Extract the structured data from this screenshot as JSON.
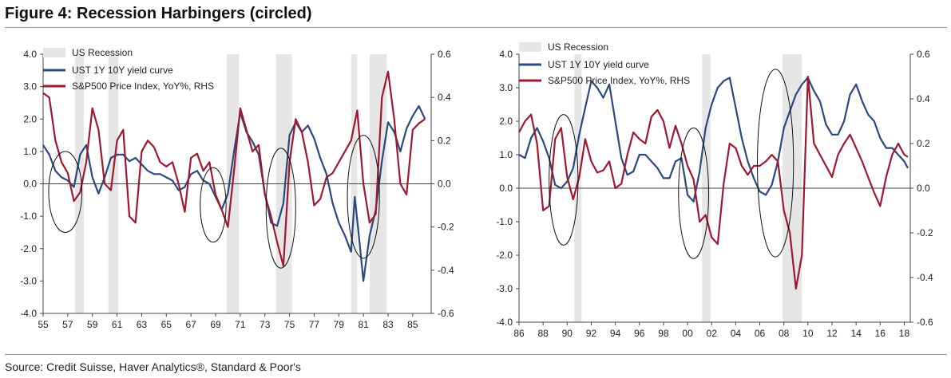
{
  "figure_title": "Figure 4:  Recession Harbingers (circled)",
  "source": "Source:  Credit Suisse, Haver Analytics®, Standard & Poor's",
  "colors": {
    "recession": "#e6e6e6",
    "curve": "#2a4a7f",
    "spx": "#a0182f",
    "spx_faded": "#d7949f",
    "axis": "#444"
  },
  "chart_data": [
    {
      "type": "line",
      "legend": [
        "US Recession",
        "UST 1Y 10Y yield curve",
        "S&P500 Price Index, YoY%, RHS"
      ],
      "xlim": [
        1955,
        1986.5
      ],
      "x_ticks": [
        1955,
        1957,
        1959,
        1961,
        1963,
        1965,
        1967,
        1969,
        1971,
        1973,
        1975,
        1977,
        1979,
        1981,
        1983,
        1985
      ],
      "x_tick_labels": [
        "55",
        "57",
        "59",
        "61",
        "63",
        "65",
        "67",
        "69",
        "71",
        "73",
        "75",
        "77",
        "79",
        "81",
        "83",
        "85"
      ],
      "ylim_left": [
        -4,
        4
      ],
      "y_left_ticks": [
        "4.0",
        "3.0",
        "2.0",
        "1.0",
        "0.0",
        "-1.0",
        "-2.0",
        "-3.0",
        "-4.0"
      ],
      "y_left_values": [
        4,
        3,
        2,
        1,
        0,
        -1,
        -2,
        -3,
        -4
      ],
      "ylim_right": [
        -0.6,
        0.6
      ],
      "y_right_ticks": [
        "0.6",
        "0.4",
        "0.2",
        "0.0",
        "-0.2",
        "-0.4",
        "-0.6"
      ],
      "y_right_values": [
        0.6,
        0.4,
        0.2,
        0,
        -0.2,
        -0.4,
        -0.6
      ],
      "recessions": [
        [
          1957.6,
          1958.3
        ],
        [
          1960.3,
          1961.1
        ],
        [
          1969.9,
          1970.9
        ],
        [
          1973.9,
          1975.2
        ],
        [
          1980.0,
          1980.5
        ],
        [
          1981.5,
          1982.9
        ]
      ],
      "circles": [
        [
          1956.8,
          -0.25,
          1.35,
          1.25
        ],
        [
          1968.8,
          -0.65,
          1.05,
          1.15
        ],
        [
          1974.3,
          -0.75,
          1.2,
          1.85
        ],
        [
          1981.0,
          -0.4,
          1.3,
          1.9
        ]
      ],
      "curve": {
        "name": "UST 1Y 10Y yield curve",
        "x": [
          1955,
          1955.5,
          1956,
          1956.5,
          1957,
          1957.5,
          1958,
          1958.5,
          1959,
          1959.5,
          1960,
          1960.5,
          1961,
          1961.5,
          1962,
          1962.5,
          1963,
          1963.5,
          1964,
          1964.5,
          1965,
          1965.5,
          1966,
          1966.5,
          1967,
          1967.5,
          1968,
          1968.5,
          1969,
          1969.5,
          1970,
          1970.5,
          1971,
          1971.5,
          1972,
          1972.5,
          1973,
          1973.5,
          1974,
          1974.5,
          1975,
          1975.5,
          1976,
          1976.5,
          1977,
          1977.5,
          1978,
          1978.5,
          1979,
          1979.5,
          1980,
          1980.3,
          1980.6,
          1981,
          1981.5,
          1982,
          1982.5,
          1983,
          1983.5,
          1984,
          1984.5,
          1985,
          1985.5,
          1986
        ],
        "values": [
          1.2,
          0.9,
          0.4,
          0.2,
          0.1,
          -0.1,
          0.9,
          1.2,
          0.2,
          -0.3,
          0.2,
          0.8,
          0.9,
          0.9,
          0.7,
          0.8,
          0.6,
          0.4,
          0.3,
          0.3,
          0.2,
          0.1,
          -0.2,
          -0.1,
          0.3,
          0.4,
          0.1,
          0.0,
          -0.4,
          -0.8,
          -0.3,
          1.0,
          2.2,
          1.6,
          1.3,
          0.9,
          -0.3,
          -1.2,
          -1.3,
          -0.6,
          1.5,
          1.9,
          1.6,
          1.8,
          1.4,
          0.8,
          0.3,
          -0.6,
          -1.2,
          -1.6,
          -2.1,
          -0.4,
          -1.5,
          -3.0,
          -1.6,
          -0.8,
          0.7,
          1.9,
          1.6,
          1.0,
          1.7,
          2.1,
          2.4,
          2.0
        ]
      },
      "spx": {
        "name": "S&P500 Price Index, YoY%, RHS",
        "x": [
          1955,
          1955.5,
          1956,
          1956.5,
          1957,
          1957.5,
          1958,
          1958.5,
          1959,
          1959.5,
          1960,
          1960.5,
          1961,
          1961.5,
          1962,
          1962.5,
          1963,
          1963.5,
          1964,
          1964.5,
          1965,
          1965.5,
          1966,
          1966.5,
          1967,
          1967.5,
          1968,
          1968.5,
          1969,
          1969.5,
          1970,
          1970.5,
          1971,
          1971.5,
          1972,
          1972.5,
          1973,
          1973.5,
          1974,
          1974.5,
          1975,
          1975.5,
          1976,
          1976.5,
          1977,
          1977.5,
          1978,
          1978.5,
          1979,
          1979.5,
          1980,
          1980.5,
          1981,
          1981.5,
          1982,
          1982.5,
          1983,
          1983.5,
          1984,
          1984.5,
          1985,
          1985.5,
          1986
        ],
        "values": [
          0.42,
          0.4,
          0.2,
          0.1,
          0.05,
          -0.08,
          -0.04,
          0.1,
          0.35,
          0.25,
          0.0,
          -0.03,
          0.2,
          0.25,
          -0.15,
          -0.18,
          0.15,
          0.2,
          0.17,
          0.1,
          0.08,
          0.1,
          0.0,
          -0.13,
          0.12,
          0.14,
          0.06,
          0.1,
          -0.05,
          -0.12,
          -0.2,
          0.06,
          0.35,
          0.25,
          0.15,
          0.18,
          -0.05,
          -0.15,
          -0.27,
          -0.38,
          0.1,
          0.3,
          0.24,
          0.1,
          -0.1,
          -0.07,
          0.03,
          0.05,
          0.1,
          0.15,
          0.2,
          0.34,
          0.0,
          -0.18,
          -0.14,
          0.4,
          0.52,
          0.3,
          0.0,
          -0.05,
          0.25,
          0.28,
          0.3
        ]
      }
    },
    {
      "type": "line",
      "legend": [
        "US Recession",
        "UST 1Y 10Y yield curve",
        "S&P500 Price Index, YoY%, RHS"
      ],
      "xlim": [
        1986,
        2018.5
      ],
      "x_ticks": [
        1986,
        1988,
        1990,
        1992,
        1994,
        1996,
        1998,
        2000,
        2002,
        2004,
        2006,
        2008,
        2010,
        2012,
        2014,
        2016,
        2018
      ],
      "x_tick_labels": [
        "86",
        "88",
        "90",
        "92",
        "94",
        "96",
        "98",
        "00",
        "02",
        "04",
        "06",
        "08",
        "10",
        "12",
        "14",
        "16",
        "18"
      ],
      "ylim_left": [
        -4,
        4
      ],
      "y_left_ticks": [
        "4.0",
        "3.0",
        "2.0",
        "1.0",
        "0.0",
        "-1.0",
        "-2.0",
        "-3.0",
        "-4.0"
      ],
      "y_left_values": [
        4,
        3,
        2,
        1,
        0,
        -1,
        -2,
        -3,
        -4
      ],
      "ylim_right": [
        -0.6,
        0.6
      ],
      "y_right_ticks": [
        "0.6",
        "0.4",
        "0.2",
        "0.0",
        "-0.2",
        "-0.4",
        "-0.6"
      ],
      "y_right_values": [
        0.6,
        0.4,
        0.2,
        0,
        -0.2,
        -0.4,
        -0.6
      ],
      "recessions": [
        [
          1990.6,
          1991.2
        ],
        [
          2001.2,
          2001.9
        ],
        [
          2007.9,
          2009.5
        ]
      ],
      "circles": [
        [
          1989.7,
          0.25,
          1.2,
          1.95
        ],
        [
          2000.5,
          -0.15,
          1.25,
          1.95
        ],
        [
          2007.3,
          0.75,
          1.5,
          2.8
        ]
      ],
      "curve": {
        "name": "UST 1Y 10Y yield curve",
        "x": [
          1986,
          1986.5,
          1987,
          1987.5,
          1988,
          1988.5,
          1989,
          1989.5,
          1990,
          1990.5,
          1991,
          1991.5,
          1992,
          1992.5,
          1993,
          1993.5,
          1994,
          1994.5,
          1995,
          1995.5,
          1996,
          1996.5,
          1997,
          1997.5,
          1998,
          1998.5,
          1999,
          1999.5,
          2000,
          2000.5,
          2001,
          2001.5,
          2002,
          2002.5,
          2003,
          2003.5,
          2004,
          2004.5,
          2005,
          2005.5,
          2006,
          2006.5,
          2007,
          2007.5,
          2008,
          2008.5,
          2009,
          2009.5,
          2010,
          2010.5,
          2011,
          2011.5,
          2012,
          2012.5,
          2013,
          2013.5,
          2014,
          2014.5,
          2015,
          2015.5,
          2016,
          2016.5,
          2017,
          2017.5,
          2018,
          2018.3
        ],
        "values": [
          1.0,
          0.9,
          1.5,
          1.8,
          1.4,
          0.9,
          0.1,
          0.0,
          0.2,
          0.6,
          1.6,
          2.4,
          3.2,
          3.0,
          2.7,
          3.1,
          2.0,
          0.9,
          0.4,
          0.5,
          1.0,
          1.0,
          0.8,
          0.6,
          0.3,
          0.3,
          0.8,
          0.9,
          -0.2,
          -0.4,
          0.5,
          1.8,
          2.5,
          3.0,
          3.2,
          3.3,
          2.4,
          1.5,
          0.8,
          0.3,
          -0.1,
          -0.2,
          0.1,
          0.8,
          1.8,
          2.3,
          2.8,
          3.1,
          3.3,
          2.9,
          2.6,
          1.9,
          1.6,
          1.6,
          2.0,
          2.8,
          3.1,
          2.6,
          2.2,
          2.0,
          1.5,
          1.2,
          1.2,
          1.0,
          0.8,
          0.6
        ]
      },
      "spx": {
        "name": "S&P500 Price Index, YoY%, RHS",
        "x": [
          1986,
          1986.5,
          1987,
          1987.5,
          1988,
          1988.5,
          1989,
          1989.5,
          1990,
          1990.5,
          1991,
          1991.5,
          1992,
          1992.5,
          1993,
          1993.5,
          1994,
          1994.5,
          1995,
          1995.5,
          1996,
          1996.5,
          1997,
          1997.5,
          1998,
          1998.5,
          1999,
          1999.5,
          2000,
          2000.5,
          2001,
          2001.5,
          2002,
          2002.5,
          2003,
          2003.5,
          2004,
          2004.5,
          2005,
          2005.5,
          2006,
          2006.5,
          2007,
          2007.5,
          2008,
          2008.5,
          2009,
          2009.5,
          2010,
          2010.5,
          2011,
          2011.5,
          2012,
          2012.5,
          2013,
          2013.5,
          2014,
          2014.5,
          2015,
          2015.5,
          2016,
          2016.5,
          2017,
          2017.5,
          2018,
          2018.3
        ],
        "values": [
          0.25,
          0.3,
          0.33,
          0.2,
          -0.1,
          -0.08,
          0.22,
          0.27,
          0.05,
          -0.05,
          0.05,
          0.22,
          0.12,
          0.07,
          0.08,
          0.12,
          0.0,
          0.02,
          0.15,
          0.25,
          0.22,
          0.2,
          0.32,
          0.35,
          0.3,
          0.18,
          0.28,
          0.2,
          0.1,
          0.04,
          -0.15,
          -0.12,
          -0.22,
          -0.25,
          0.02,
          0.2,
          0.18,
          0.1,
          0.06,
          0.1,
          0.1,
          0.12,
          0.15,
          0.12,
          -0.1,
          -0.2,
          -0.45,
          -0.3,
          0.5,
          0.2,
          0.15,
          0.1,
          0.05,
          0.15,
          0.2,
          0.24,
          0.18,
          0.12,
          0.05,
          -0.02,
          -0.08,
          0.05,
          0.15,
          0.2,
          0.15,
          0.14
        ]
      }
    }
  ]
}
